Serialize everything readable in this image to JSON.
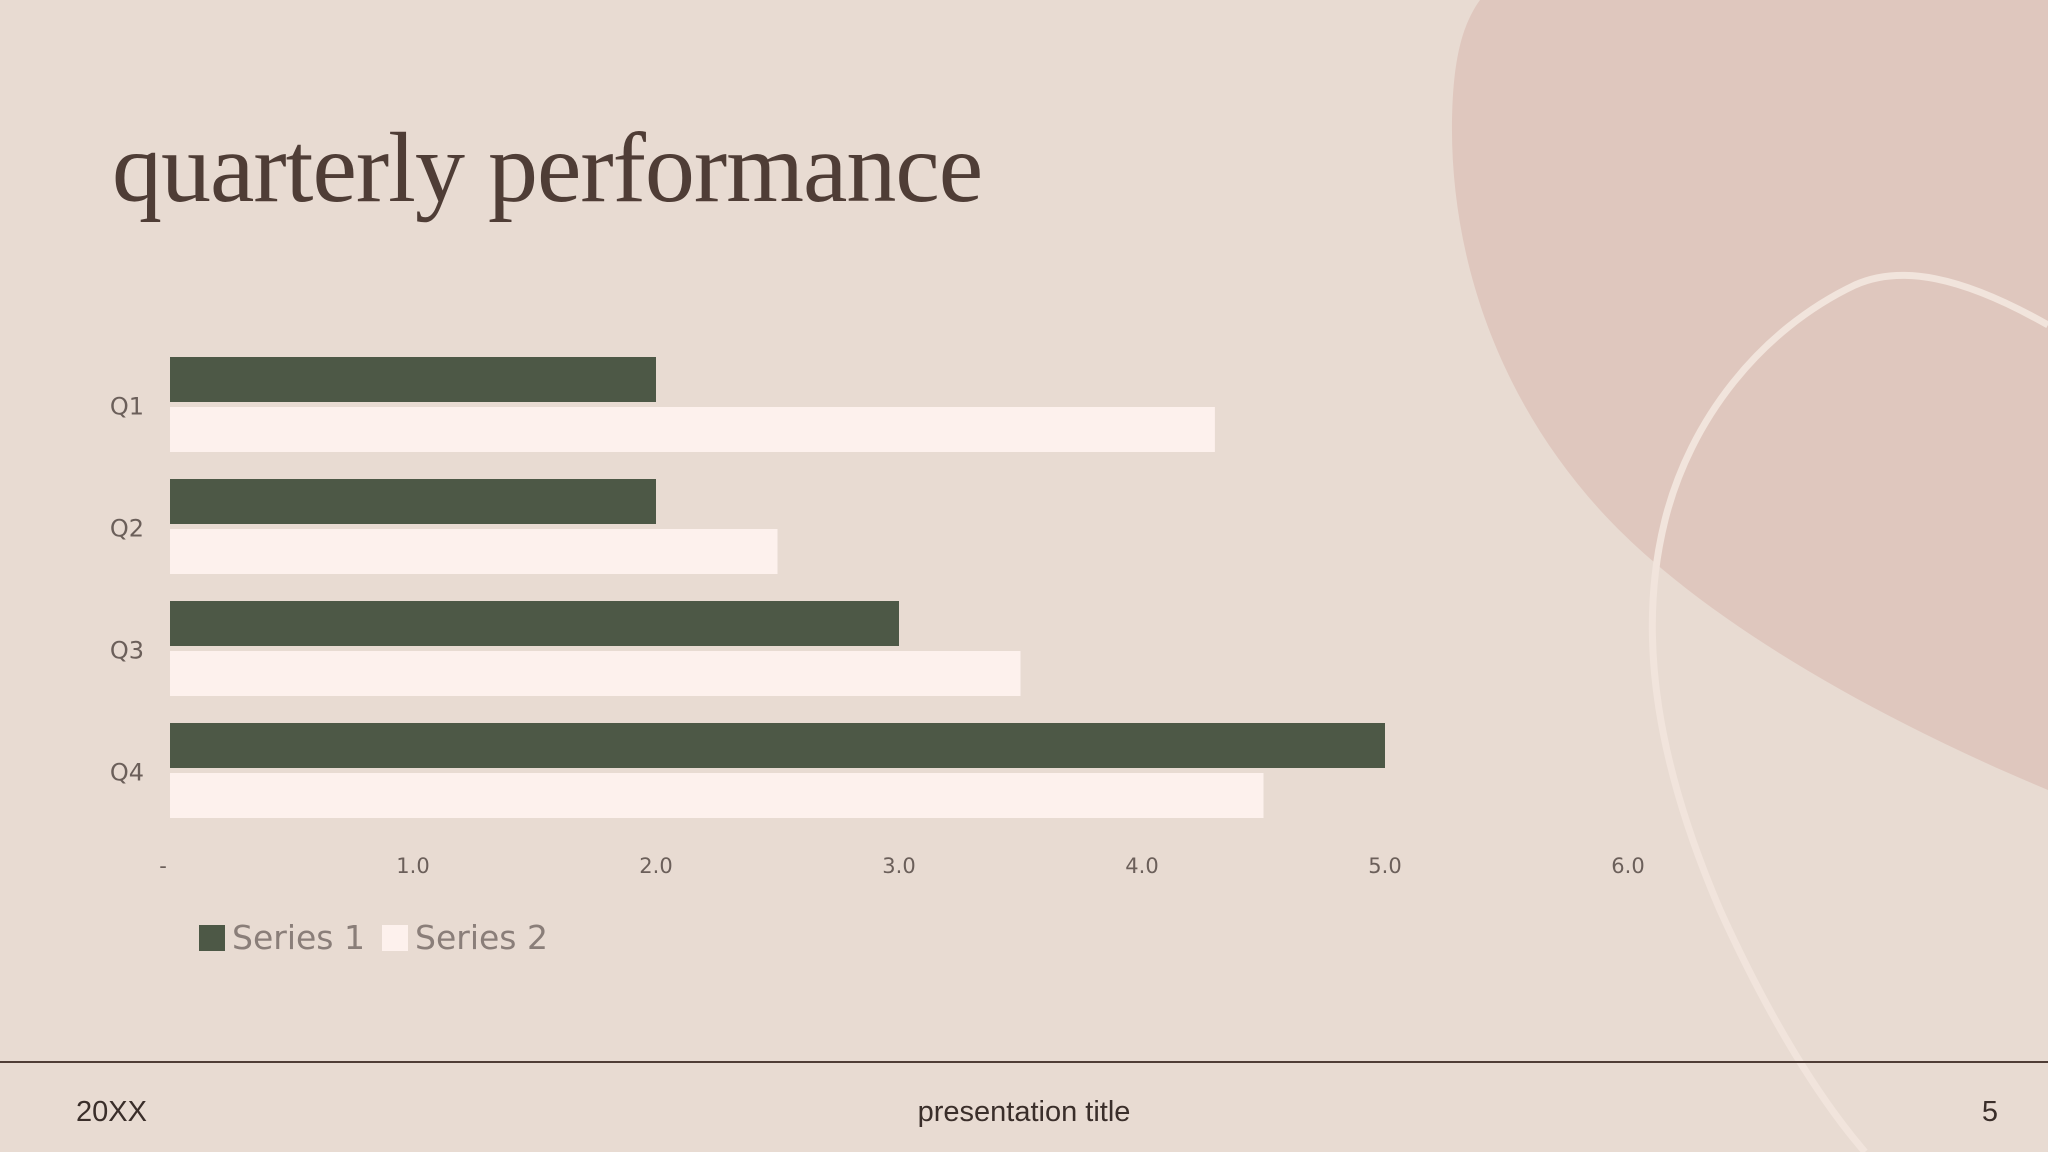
{
  "slide": {
    "title": "quarterly performance"
  },
  "footer": {
    "date": "20XX",
    "presentation_title": "presentation title",
    "page_number": "5"
  },
  "colors": {
    "background": "#e8dbd2",
    "blob": "#dfc7be",
    "series1": "#4d5846",
    "series2": "#fdf1ed",
    "text": "#4f3d36",
    "tick_text": "#6b5f5a"
  },
  "chart_data": {
    "type": "bar",
    "orientation": "horizontal",
    "categories": [
      "Q1",
      "Q2",
      "Q3",
      "Q4"
    ],
    "series": [
      {
        "name": "Series 1",
        "values": [
          2.0,
          2.0,
          3.0,
          5.0
        ]
      },
      {
        "name": "Series 2",
        "values": [
          4.3,
          2.5,
          3.5,
          4.5
        ]
      }
    ],
    "x_ticks": [
      {
        "value": 0,
        "label": "-"
      },
      {
        "value": 1,
        "label": "1.0"
      },
      {
        "value": 2,
        "label": "2.0"
      },
      {
        "value": 3,
        "label": "3.0"
      },
      {
        "value": 4,
        "label": "4.0"
      },
      {
        "value": 5,
        "label": "5.0"
      },
      {
        "value": 6,
        "label": "6.0"
      }
    ],
    "xlim": [
      0,
      6
    ],
    "grid": false,
    "legend": "bottom-left"
  }
}
